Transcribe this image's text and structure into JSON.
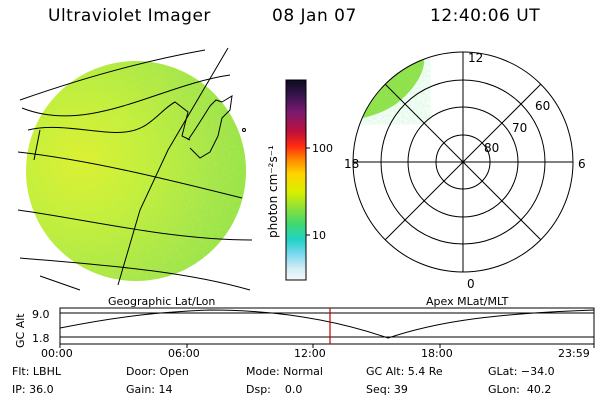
{
  "header": {
    "title": "Ultraviolet Imager",
    "date": "08 Jan 07",
    "time": "12:40:06 UT"
  },
  "colorbar": {
    "unit_label": "photon cm⁻²s⁻¹",
    "ticks": [
      "100",
      "10"
    ],
    "colors": [
      "#0b0b1e",
      "#3a1450",
      "#7a1a70",
      "#c0103a",
      "#ff2a10",
      "#ff8a00",
      "#ffd400",
      "#d8f000",
      "#8ee03a",
      "#40d870",
      "#22d2c8",
      "#7ad8f0",
      "#d2ecf4",
      "#f4f8f8"
    ]
  },
  "left_panel": {
    "caption": "Geographic Lat/Lon",
    "image_colors": [
      "#a8e43c",
      "#8ee03a",
      "#c8ee2c",
      "#e6f020",
      "#6cd64a",
      "#52d070"
    ]
  },
  "right_panel": {
    "caption": "Apex MLat/MLT",
    "mlt_labels": {
      "top": "12",
      "bottom": "0",
      "left": "18",
      "right": "6"
    },
    "lat_labels": [
      "60",
      "70",
      "80"
    ]
  },
  "timeline": {
    "y_axis_title": "GC Alt",
    "y_ticks": [
      "9.0",
      "1.8"
    ],
    "x_ticks": [
      "00:00",
      "06:00",
      "12:00",
      "18:00",
      "23:59"
    ],
    "marker_color": "#c00000"
  },
  "info": {
    "flt": "Flt: LBHL",
    "ip": "IP: 36.0",
    "door": "Door: Open",
    "gain": "Gain: 14",
    "mode": "Mode: Normal",
    "dsp": "Dsp:    0.0",
    "gc_alt": "GC Alt: 5.4 Re",
    "seq": "Seq: 39",
    "glat": "GLat: −34.0",
    "glon": "GLon:  40.2"
  }
}
